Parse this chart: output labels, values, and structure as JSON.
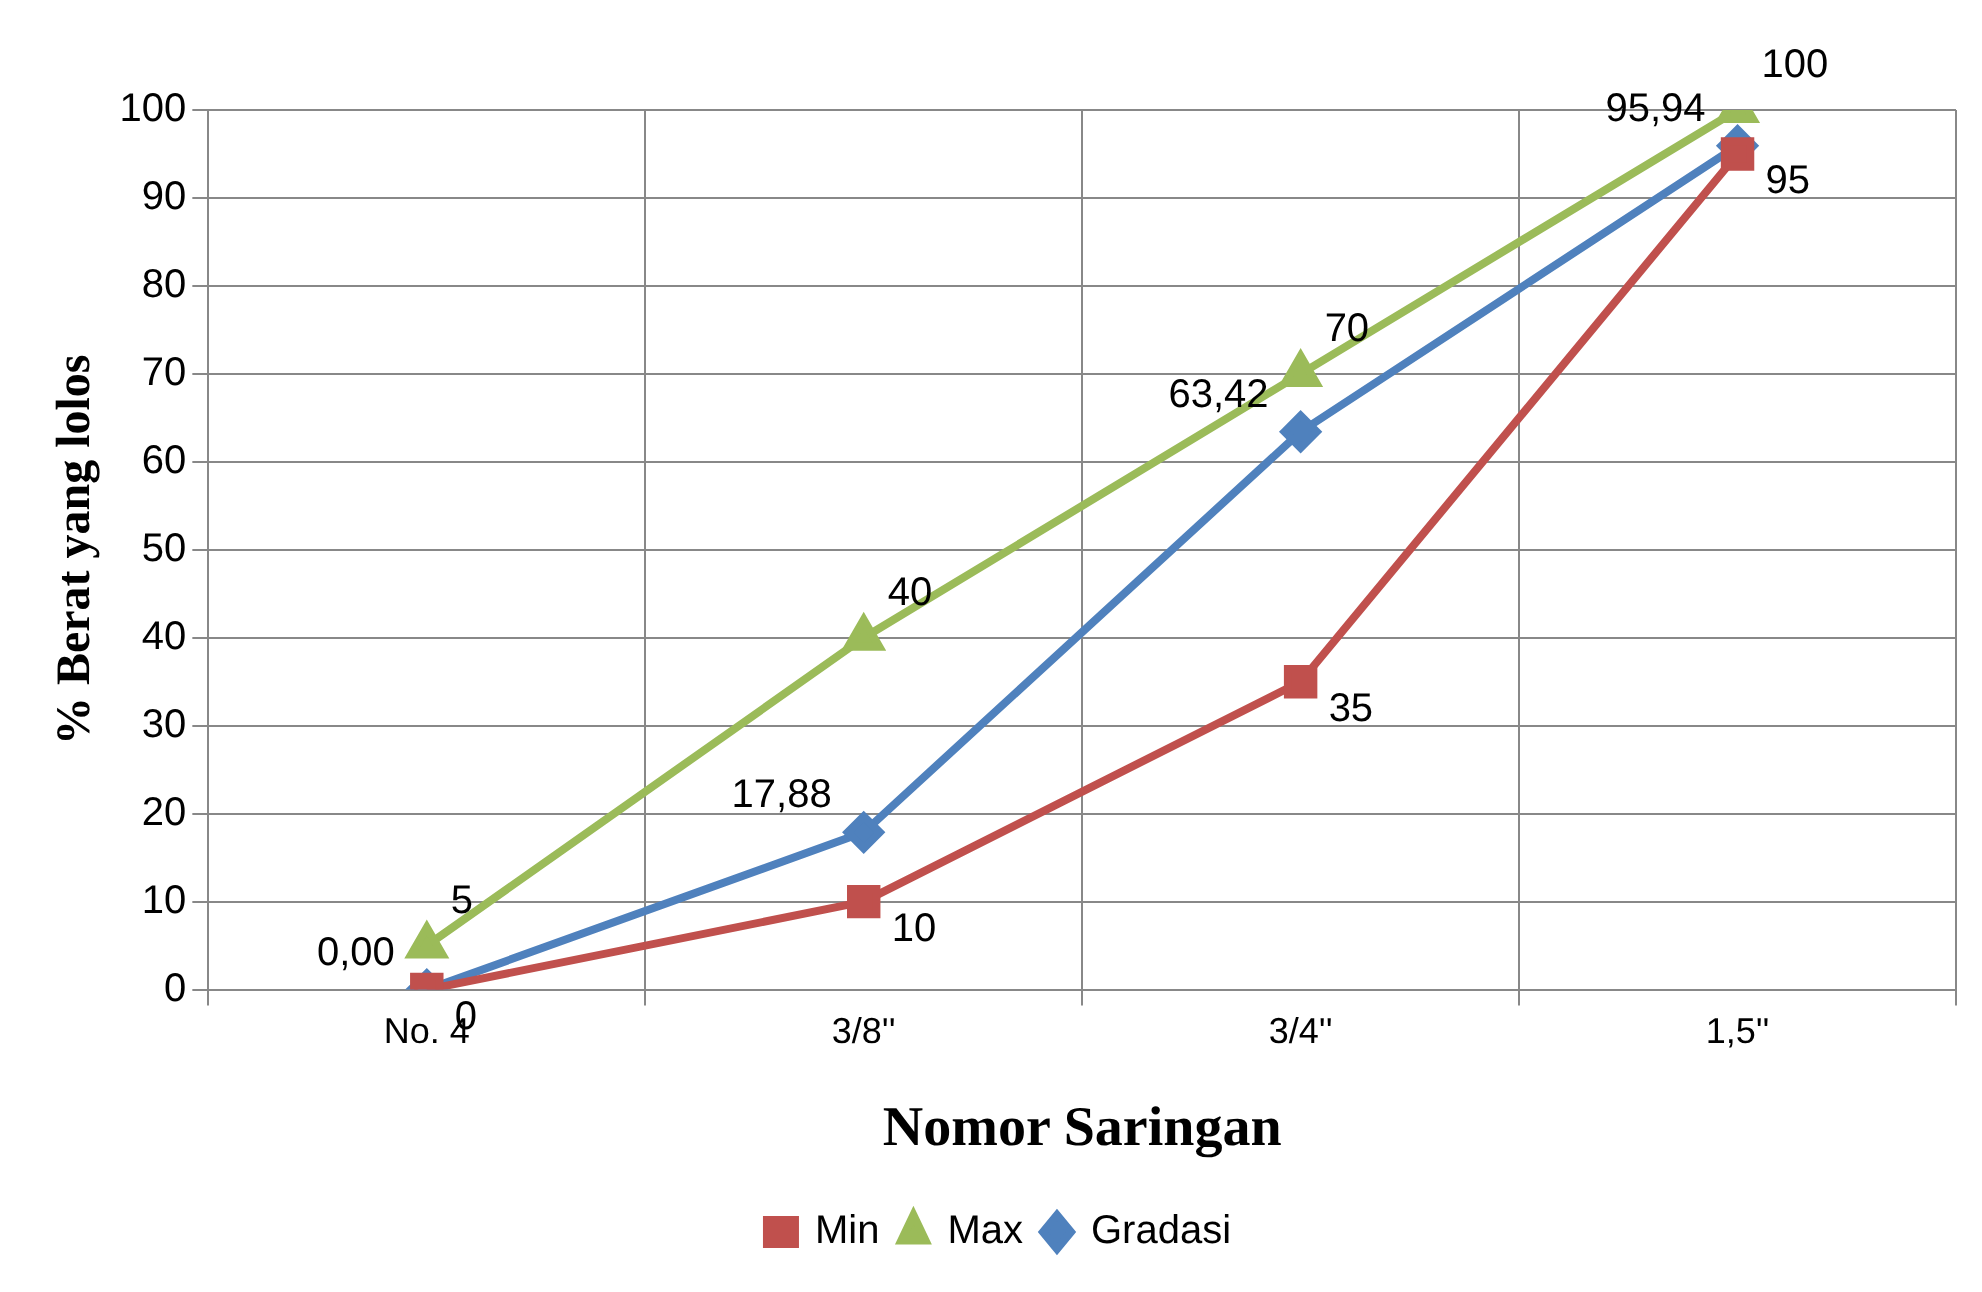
{
  "chart_data": {
    "type": "line",
    "xlabel": "Nomor Saringan",
    "ylabel": "% Berat yang lolos",
    "categories": [
      "No. 4",
      "3/8''",
      "3/4''",
      "1,5''"
    ],
    "series": [
      {
        "name": "Min",
        "color": "#c0504d",
        "marker": "square",
        "values": [
          0,
          10,
          35,
          95
        ],
        "value_labels": [
          "0",
          "10",
          "35",
          "95"
        ]
      },
      {
        "name": "Max",
        "color": "#9bbb59",
        "marker": "triangle",
        "values": [
          5,
          40,
          70,
          100
        ],
        "value_labels": [
          "5",
          "40",
          "70",
          "100"
        ]
      },
      {
        "name": "Gradasi",
        "color": "#4f81bd",
        "marker": "diamond",
        "values": [
          0,
          17.88,
          63.42,
          95.94
        ],
        "value_labels": [
          "0,00",
          "17,88",
          "63,42",
          "95,94"
        ]
      }
    ],
    "ylim": [
      0,
      100
    ],
    "yticks": [
      0,
      10,
      20,
      30,
      40,
      50,
      60,
      70,
      80,
      90,
      100
    ],
    "grid": true,
    "legend": "bottom"
  }
}
